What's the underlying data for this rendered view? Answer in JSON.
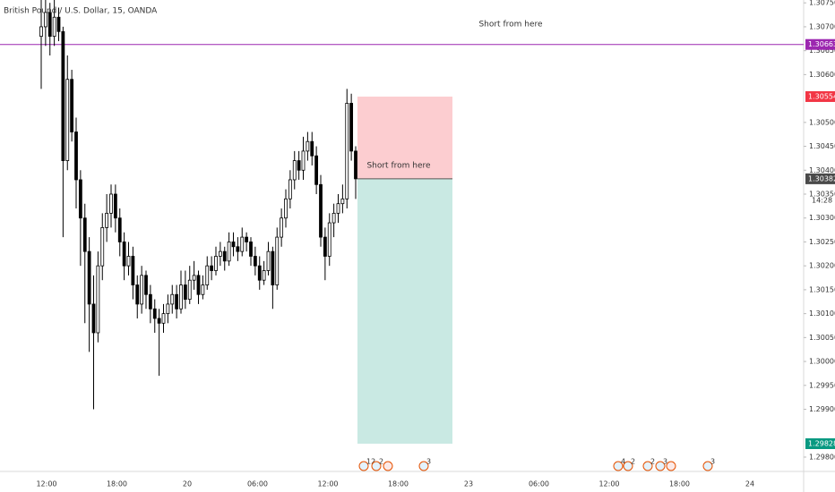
{
  "chart_data": {
    "type": "candlestick",
    "title": "British Pound / U.S. Dollar, 15, OANDA",
    "up_color": "#ffffff",
    "down_color": "#000000",
    "wick_color": "#000000",
    "ylim": [
      1.2977,
      1.30756
    ],
    "yticks": [
      {
        "value": 1.3075,
        "label": "1.30750"
      },
      {
        "value": 1.307,
        "label": "1.30700"
      },
      {
        "value": 1.3065,
        "label": "1.30650"
      },
      {
        "value": 1.306,
        "label": "1.30600"
      },
      {
        "value": 1.305,
        "label": "1.30500"
      },
      {
        "value": 1.3045,
        "label": "1.30450"
      },
      {
        "value": 1.304,
        "label": "1.30400"
      },
      {
        "value": 1.3035,
        "label": "1.30350"
      },
      {
        "value": 1.303,
        "label": "1.30300"
      },
      {
        "value": 1.3025,
        "label": "1.30250"
      },
      {
        "value": 1.302,
        "label": "1.30200"
      },
      {
        "value": 1.3015,
        "label": "1.30150"
      },
      {
        "value": 1.301,
        "label": "1.30100"
      },
      {
        "value": 1.3005,
        "label": "1.30050"
      },
      {
        "value": 1.3,
        "label": "1.30000"
      },
      {
        "value": 1.2995,
        "label": "1.29950"
      },
      {
        "value": 1.299,
        "label": "1.29900"
      },
      {
        "value": 1.298,
        "label": "1.29800"
      }
    ],
    "xticks": [
      "12:00",
      "18:00",
      "20",
      "06:00",
      "12:00",
      "18:00",
      "23",
      "06:00",
      "12:00",
      "18:00",
      "24"
    ],
    "open": [
      1.3068,
      1.307,
      1.3073,
      1.3068,
      1.3072,
      1.3069,
      1.3042,
      1.3059,
      1.3048,
      1.3038,
      1.303,
      1.3023,
      1.3012,
      1.3006,
      1.302,
      1.3028,
      1.3031,
      1.3035,
      1.303,
      1.3025,
      1.302,
      1.3022,
      1.3016,
      1.3012,
      1.3018,
      1.3014,
      1.3011,
      1.3009,
      1.3008,
      1.301,
      1.3012,
      1.3014,
      1.3011,
      1.3016,
      1.3013,
      1.3017,
      1.3018,
      1.3014,
      1.3016,
      1.302,
      1.3019,
      1.3022,
      1.3023,
      1.3021,
      1.3025,
      1.3024,
      1.3023,
      1.3026,
      1.3025,
      1.3022,
      1.302,
      1.3017,
      1.3019,
      1.3023,
      1.3016,
      1.3026,
      1.303,
      1.3034,
      1.3038,
      1.3042,
      1.304,
      1.3044,
      1.3046,
      1.3043,
      1.3037,
      1.3026,
      1.3022,
      1.3029,
      1.3031,
      1.3033,
      1.3034,
      1.3054,
      1.3044
    ],
    "high": [
      1.3076,
      1.3076,
      1.3075,
      1.3076,
      1.3074,
      1.307,
      1.3064,
      1.3061,
      1.3051,
      1.304,
      1.3033,
      1.3026,
      1.3018,
      1.3023,
      1.3031,
      1.3035,
      1.3037,
      1.3037,
      1.3032,
      1.3027,
      1.3025,
      1.3024,
      1.3018,
      1.302,
      1.3019,
      1.3016,
      1.3013,
      1.3011,
      1.3012,
      1.3014,
      1.3016,
      1.3016,
      1.3019,
      1.3019,
      1.302,
      1.3021,
      1.3019,
      1.3018,
      1.3022,
      1.3022,
      1.3024,
      1.3025,
      1.3024,
      1.3027,
      1.3027,
      1.3026,
      1.3028,
      1.3027,
      1.3026,
      1.3024,
      1.3022,
      1.3021,
      1.3025,
      1.3024,
      1.3028,
      1.3032,
      1.3036,
      1.304,
      1.3044,
      1.3044,
      1.3047,
      1.3048,
      1.3048,
      1.3045,
      1.3039,
      1.3028,
      1.3031,
      1.3033,
      1.3035,
      1.3037,
      1.3057,
      1.3056,
      1.3045
    ],
    "low": [
      1.3057,
      1.3066,
      1.3064,
      1.3066,
      1.3067,
      1.3026,
      1.304,
      1.3046,
      1.3032,
      1.302,
      1.3008,
      1.3002,
      1.299,
      1.3004,
      1.3017,
      1.3025,
      1.3028,
      1.3027,
      1.3022,
      1.3017,
      1.3018,
      1.3013,
      1.3009,
      1.301,
      1.3011,
      1.3008,
      1.3006,
      1.2997,
      1.3006,
      1.3008,
      1.301,
      1.3009,
      1.301,
      1.3011,
      1.3012,
      1.3015,
      1.3012,
      1.3013,
      1.3015,
      1.3017,
      1.3018,
      1.302,
      1.3019,
      1.302,
      1.3022,
      1.3021,
      1.3022,
      1.3023,
      1.302,
      1.3018,
      1.3015,
      1.3016,
      1.3018,
      1.3011,
      1.3015,
      1.3024,
      1.3028,
      1.3032,
      1.3036,
      1.3038,
      1.3038,
      1.3042,
      1.3041,
      1.3035,
      1.3024,
      1.3017,
      1.302,
      1.3026,
      1.3029,
      1.3031,
      1.3032,
      1.3042,
      1.3034
    ],
    "close": [
      1.307,
      1.3073,
      1.3068,
      1.3072,
      1.3069,
      1.3042,
      1.3059,
      1.3048,
      1.3038,
      1.303,
      1.3023,
      1.3012,
      1.3006,
      1.302,
      1.3028,
      1.3031,
      1.3035,
      1.303,
      1.3025,
      1.302,
      1.3022,
      1.3016,
      1.3012,
      1.3018,
      1.3014,
      1.3011,
      1.3009,
      1.3008,
      1.301,
      1.3012,
      1.3014,
      1.3011,
      1.3016,
      1.3013,
      1.3017,
      1.3018,
      1.3014,
      1.3016,
      1.302,
      1.3019,
      1.3022,
      1.3023,
      1.3021,
      1.3025,
      1.3024,
      1.3023,
      1.3026,
      1.3025,
      1.3022,
      1.302,
      1.3017,
      1.3019,
      1.3023,
      1.3016,
      1.3026,
      1.303,
      1.3034,
      1.3038,
      1.3042,
      1.304,
      1.3044,
      1.3046,
      1.3043,
      1.3037,
      1.3026,
      1.3022,
      1.3029,
      1.3031,
      1.3033,
      1.3034,
      1.3054,
      1.3044,
      1.30382
    ],
    "hline": {
      "value": 1.30663,
      "color": "#9c27b0"
    },
    "position": {
      "stop": 1.30554,
      "entry": 1.30382,
      "target": 1.29828,
      "stop_color": "#f23645",
      "target_color": "#089981",
      "entry_label_color": "#4a4a4a"
    },
    "countdown": "14:28",
    "annotations": [
      "Short from here",
      "Short from here"
    ],
    "events": [
      "12",
      "2",
      "3",
      "4",
      "2",
      "2",
      "3",
      "3"
    ]
  }
}
